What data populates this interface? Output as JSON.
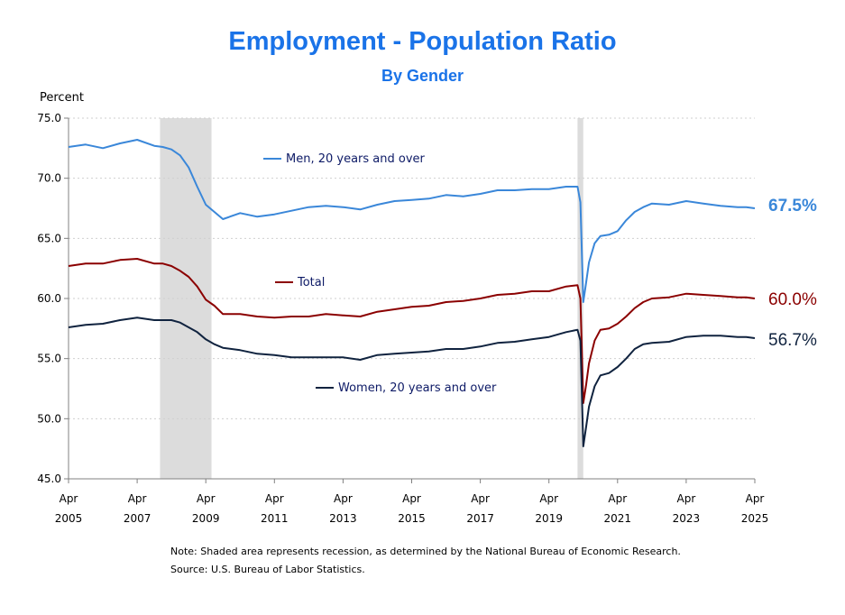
{
  "title": "Employment - Population Ratio",
  "subtitle": "By Gender",
  "note": "Note: Shaded area represents recession, as determined by the National Bureau of Economic Research.",
  "source": "Source: U.S. Bureau of Labor Statistics.",
  "chart_data": {
    "type": "line",
    "ylabel": "Percent",
    "ylim": [
      45.0,
      75.0
    ],
    "yticks": [
      "45.0",
      "50.0",
      "55.0",
      "60.0",
      "65.0",
      "70.0",
      "75.0"
    ],
    "xlim": [
      "2005-04",
      "2025-04"
    ],
    "xticks": [
      {
        "month": "Apr",
        "year": "2005"
      },
      {
        "month": "Apr",
        "year": "2007"
      },
      {
        "month": "Apr",
        "year": "2009"
      },
      {
        "month": "Apr",
        "year": "2011"
      },
      {
        "month": "Apr",
        "year": "2013"
      },
      {
        "month": "Apr",
        "year": "2015"
      },
      {
        "month": "Apr",
        "year": "2017"
      },
      {
        "month": "Apr",
        "year": "2019"
      },
      {
        "month": "Apr",
        "year": "2021"
      },
      {
        "month": "Apr",
        "year": "2023"
      },
      {
        "month": "Apr",
        "year": "2025"
      }
    ],
    "grid": "horizontal dotted",
    "recessions": [
      [
        "2007-12",
        "2009-06"
      ],
      [
        "2020-02",
        "2020-04"
      ]
    ],
    "series": [
      {
        "name": "Men, 20 years and over",
        "color": "#3a87d9",
        "end_label": "67.5%",
        "points": [
          [
            "2005-04",
            72.6
          ],
          [
            "2005-10",
            72.8
          ],
          [
            "2006-04",
            72.5
          ],
          [
            "2006-10",
            72.9
          ],
          [
            "2007-04",
            73.2
          ],
          [
            "2007-10",
            72.7
          ],
          [
            "2008-01",
            72.6
          ],
          [
            "2008-04",
            72.4
          ],
          [
            "2008-07",
            71.9
          ],
          [
            "2008-10",
            70.9
          ],
          [
            "2009-01",
            69.3
          ],
          [
            "2009-04",
            67.8
          ],
          [
            "2009-07",
            67.2
          ],
          [
            "2009-10",
            66.6
          ],
          [
            "2010-04",
            67.1
          ],
          [
            "2010-10",
            66.8
          ],
          [
            "2011-04",
            67.0
          ],
          [
            "2011-10",
            67.3
          ],
          [
            "2012-04",
            67.6
          ],
          [
            "2012-10",
            67.7
          ],
          [
            "2013-04",
            67.6
          ],
          [
            "2013-10",
            67.4
          ],
          [
            "2014-04",
            67.8
          ],
          [
            "2014-10",
            68.1
          ],
          [
            "2015-04",
            68.2
          ],
          [
            "2015-10",
            68.3
          ],
          [
            "2016-04",
            68.6
          ],
          [
            "2016-10",
            68.5
          ],
          [
            "2017-04",
            68.7
          ],
          [
            "2017-10",
            69.0
          ],
          [
            "2018-04",
            69.0
          ],
          [
            "2018-10",
            69.1
          ],
          [
            "2019-04",
            69.1
          ],
          [
            "2019-10",
            69.3
          ],
          [
            "2020-02",
            69.3
          ],
          [
            "2020-03",
            68.0
          ],
          [
            "2020-04",
            59.7
          ],
          [
            "2020-05",
            61.3
          ],
          [
            "2020-06",
            63.0
          ],
          [
            "2020-08",
            64.6
          ],
          [
            "2020-10",
            65.2
          ],
          [
            "2021-01",
            65.3
          ],
          [
            "2021-04",
            65.6
          ],
          [
            "2021-07",
            66.5
          ],
          [
            "2021-10",
            67.2
          ],
          [
            "2022-01",
            67.6
          ],
          [
            "2022-04",
            67.9
          ],
          [
            "2022-10",
            67.8
          ],
          [
            "2023-04",
            68.1
          ],
          [
            "2023-10",
            67.9
          ],
          [
            "2024-04",
            67.7
          ],
          [
            "2024-10",
            67.6
          ],
          [
            "2025-01",
            67.6
          ],
          [
            "2025-04",
            67.5
          ]
        ]
      },
      {
        "name": "Total",
        "color": "#8b0000",
        "end_label": "60.0%",
        "points": [
          [
            "2005-04",
            62.7
          ],
          [
            "2005-10",
            62.9
          ],
          [
            "2006-04",
            62.9
          ],
          [
            "2006-10",
            63.2
          ],
          [
            "2007-04",
            63.3
          ],
          [
            "2007-10",
            62.9
          ],
          [
            "2008-01",
            62.9
          ],
          [
            "2008-04",
            62.7
          ],
          [
            "2008-07",
            62.3
          ],
          [
            "2008-10",
            61.8
          ],
          [
            "2009-01",
            61.0
          ],
          [
            "2009-04",
            59.9
          ],
          [
            "2009-07",
            59.4
          ],
          [
            "2009-10",
            58.7
          ],
          [
            "2010-04",
            58.7
          ],
          [
            "2010-10",
            58.5
          ],
          [
            "2011-04",
            58.4
          ],
          [
            "2011-10",
            58.5
          ],
          [
            "2012-04",
            58.5
          ],
          [
            "2012-10",
            58.7
          ],
          [
            "2013-04",
            58.6
          ],
          [
            "2013-10",
            58.5
          ],
          [
            "2014-04",
            58.9
          ],
          [
            "2014-10",
            59.1
          ],
          [
            "2015-04",
            59.3
          ],
          [
            "2015-10",
            59.4
          ],
          [
            "2016-04",
            59.7
          ],
          [
            "2016-10",
            59.8
          ],
          [
            "2017-04",
            60.0
          ],
          [
            "2017-10",
            60.3
          ],
          [
            "2018-04",
            60.4
          ],
          [
            "2018-10",
            60.6
          ],
          [
            "2019-04",
            60.6
          ],
          [
            "2019-10",
            61.0
          ],
          [
            "2020-02",
            61.1
          ],
          [
            "2020-03",
            60.0
          ],
          [
            "2020-04",
            51.3
          ],
          [
            "2020-05",
            52.8
          ],
          [
            "2020-06",
            54.6
          ],
          [
            "2020-08",
            56.5
          ],
          [
            "2020-10",
            57.4
          ],
          [
            "2021-01",
            57.5
          ],
          [
            "2021-04",
            57.9
          ],
          [
            "2021-07",
            58.5
          ],
          [
            "2021-10",
            59.2
          ],
          [
            "2022-01",
            59.7
          ],
          [
            "2022-04",
            60.0
          ],
          [
            "2022-10",
            60.1
          ],
          [
            "2023-04",
            60.4
          ],
          [
            "2023-10",
            60.3
          ],
          [
            "2024-04",
            60.2
          ],
          [
            "2024-10",
            60.1
          ],
          [
            "2025-01",
            60.1
          ],
          [
            "2025-04",
            60.0
          ]
        ]
      },
      {
        "name": "Women, 20 years and over",
        "color": "#10233f",
        "end_label": "56.7%",
        "points": [
          [
            "2005-04",
            57.6
          ],
          [
            "2005-10",
            57.8
          ],
          [
            "2006-04",
            57.9
          ],
          [
            "2006-10",
            58.2
          ],
          [
            "2007-04",
            58.4
          ],
          [
            "2007-10",
            58.2
          ],
          [
            "2008-01",
            58.2
          ],
          [
            "2008-04",
            58.2
          ],
          [
            "2008-07",
            58.0
          ],
          [
            "2008-10",
            57.6
          ],
          [
            "2009-01",
            57.2
          ],
          [
            "2009-04",
            56.6
          ],
          [
            "2009-07",
            56.2
          ],
          [
            "2009-10",
            55.9
          ],
          [
            "2010-04",
            55.7
          ],
          [
            "2010-10",
            55.4
          ],
          [
            "2011-04",
            55.3
          ],
          [
            "2011-10",
            55.1
          ],
          [
            "2012-04",
            55.1
          ],
          [
            "2012-10",
            55.1
          ],
          [
            "2013-04",
            55.1
          ],
          [
            "2013-10",
            54.9
          ],
          [
            "2014-04",
            55.3
          ],
          [
            "2014-10",
            55.4
          ],
          [
            "2015-04",
            55.5
          ],
          [
            "2015-10",
            55.6
          ],
          [
            "2016-04",
            55.8
          ],
          [
            "2016-10",
            55.8
          ],
          [
            "2017-04",
            56.0
          ],
          [
            "2017-10",
            56.3
          ],
          [
            "2018-04",
            56.4
          ],
          [
            "2018-10",
            56.6
          ],
          [
            "2019-04",
            56.8
          ],
          [
            "2019-10",
            57.2
          ],
          [
            "2020-02",
            57.4
          ],
          [
            "2020-03",
            56.5
          ],
          [
            "2020-04",
            47.7
          ],
          [
            "2020-05",
            49.3
          ],
          [
            "2020-06",
            51.0
          ],
          [
            "2020-08",
            52.7
          ],
          [
            "2020-10",
            53.6
          ],
          [
            "2021-01",
            53.8
          ],
          [
            "2021-04",
            54.3
          ],
          [
            "2021-07",
            55.0
          ],
          [
            "2021-10",
            55.8
          ],
          [
            "2022-01",
            56.2
          ],
          [
            "2022-04",
            56.3
          ],
          [
            "2022-10",
            56.4
          ],
          [
            "2023-04",
            56.8
          ],
          [
            "2023-10",
            56.9
          ],
          [
            "2024-04",
            56.9
          ],
          [
            "2024-10",
            56.8
          ],
          [
            "2025-01",
            56.8
          ],
          [
            "2025-04",
            56.7
          ]
        ]
      }
    ]
  }
}
